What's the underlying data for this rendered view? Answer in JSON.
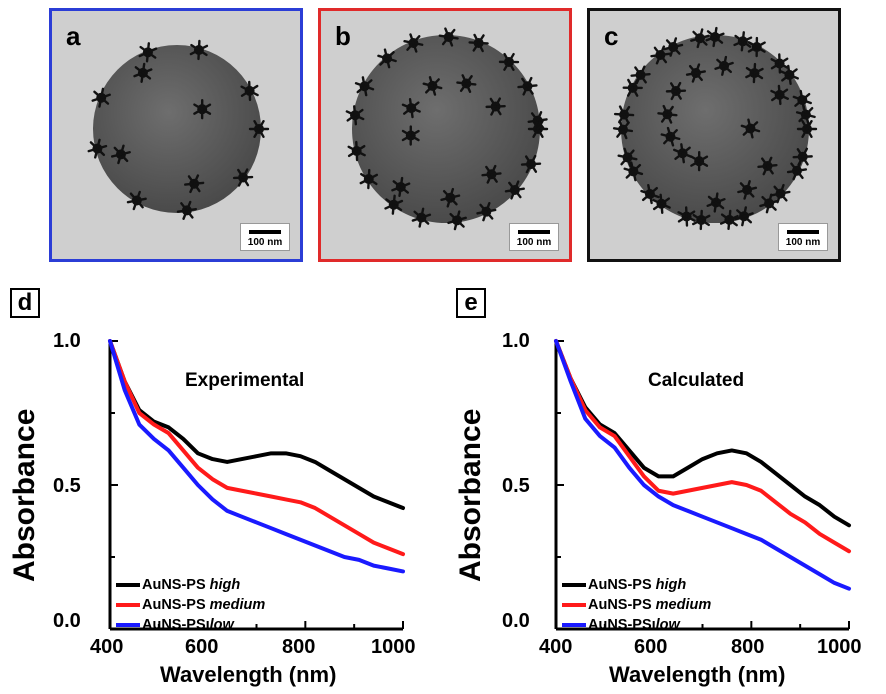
{
  "panels_tem": [
    {
      "label": "a",
      "border_color": "#2b3dd6",
      "scale_label": "100 nm",
      "particle_loading": "low"
    },
    {
      "label": "b",
      "border_color": "#e02a2a",
      "scale_label": "100 nm",
      "particle_loading": "medium"
    },
    {
      "label": "c",
      "border_color": "#111111",
      "scale_label": "100 nm",
      "particle_loading": "high"
    }
  ],
  "colors": {
    "high": "#000000",
    "medium": "#ff1a1a",
    "low": "#1a1aff"
  },
  "chart_data": [
    {
      "panel_label": "d",
      "type": "line",
      "title": "Experimental",
      "xlabel": "Wavelength (nm)",
      "ylabel": "Absorbance",
      "xlim": [
        400,
        1000
      ],
      "ylim": [
        0.0,
        1.0
      ],
      "xticks": [
        "400",
        "600",
        "800",
        "1000"
      ],
      "yticks": [
        "0.0",
        "0.5",
        "1.0"
      ],
      "legend": {
        "position": "bottom-left"
      },
      "series": [
        {
          "name_main": "AuNS-PS",
          "name_mod": "high",
          "color": "#000000",
          "x": [
            400,
            430,
            460,
            490,
            520,
            550,
            580,
            610,
            640,
            670,
            700,
            730,
            760,
            790,
            820,
            850,
            880,
            910,
            940,
            970,
            1000
          ],
          "y": [
            1.0,
            0.86,
            0.76,
            0.72,
            0.7,
            0.66,
            0.61,
            0.59,
            0.58,
            0.59,
            0.6,
            0.61,
            0.61,
            0.6,
            0.58,
            0.55,
            0.52,
            0.49,
            0.46,
            0.44,
            0.42
          ]
        },
        {
          "name_main": "AuNS-PS",
          "name_mod": "medium",
          "color": "#ff1a1a",
          "x": [
            400,
            430,
            460,
            490,
            520,
            550,
            580,
            610,
            640,
            670,
            700,
            730,
            760,
            790,
            820,
            850,
            880,
            910,
            940,
            970,
            1000
          ],
          "y": [
            1.0,
            0.86,
            0.75,
            0.71,
            0.68,
            0.62,
            0.56,
            0.52,
            0.49,
            0.48,
            0.47,
            0.46,
            0.45,
            0.44,
            0.42,
            0.39,
            0.36,
            0.33,
            0.3,
            0.28,
            0.26
          ]
        },
        {
          "name_main": "AuNS-PS",
          "name_mod": "low",
          "color": "#1a1aff",
          "x": [
            400,
            430,
            460,
            490,
            520,
            550,
            580,
            610,
            640,
            670,
            700,
            730,
            760,
            790,
            820,
            850,
            880,
            910,
            940,
            970,
            1000
          ],
          "y": [
            1.0,
            0.83,
            0.71,
            0.66,
            0.62,
            0.56,
            0.5,
            0.45,
            0.41,
            0.39,
            0.37,
            0.35,
            0.33,
            0.31,
            0.29,
            0.27,
            0.25,
            0.24,
            0.22,
            0.21,
            0.2
          ]
        }
      ]
    },
    {
      "panel_label": "e",
      "type": "line",
      "title": "Calculated",
      "xlabel": "Wavelength (nm)",
      "ylabel": "Absorbance",
      "xlim": [
        400,
        1000
      ],
      "ylim": [
        0.0,
        1.0
      ],
      "xticks": [
        "400",
        "600",
        "800",
        "1000"
      ],
      "yticks": [
        "0.0",
        "0.5",
        "1.0"
      ],
      "legend": {
        "position": "bottom-left"
      },
      "series": [
        {
          "name_main": "AuNS-PS",
          "name_mod": "high",
          "color": "#000000",
          "x": [
            400,
            430,
            460,
            490,
            520,
            550,
            580,
            610,
            640,
            670,
            700,
            730,
            760,
            790,
            820,
            850,
            880,
            910,
            940,
            970,
            1000
          ],
          "y": [
            1.0,
            0.87,
            0.77,
            0.71,
            0.68,
            0.62,
            0.56,
            0.53,
            0.53,
            0.56,
            0.59,
            0.61,
            0.62,
            0.61,
            0.58,
            0.54,
            0.5,
            0.46,
            0.43,
            0.39,
            0.36
          ]
        },
        {
          "name_main": "AuNS-PS",
          "name_mod": "medium",
          "color": "#ff1a1a",
          "x": [
            400,
            430,
            460,
            490,
            520,
            550,
            580,
            610,
            640,
            670,
            700,
            730,
            760,
            790,
            820,
            850,
            880,
            910,
            940,
            970,
            1000
          ],
          "y": [
            1.0,
            0.87,
            0.76,
            0.7,
            0.67,
            0.6,
            0.53,
            0.48,
            0.47,
            0.48,
            0.49,
            0.5,
            0.51,
            0.5,
            0.48,
            0.44,
            0.4,
            0.37,
            0.33,
            0.3,
            0.27
          ]
        },
        {
          "name_main": "AuNS-PS",
          "name_mod": "low",
          "color": "#1a1aff",
          "x": [
            400,
            430,
            460,
            490,
            520,
            550,
            580,
            610,
            640,
            670,
            700,
            730,
            760,
            790,
            820,
            850,
            880,
            910,
            940,
            970,
            1000
          ],
          "y": [
            1.0,
            0.86,
            0.73,
            0.67,
            0.63,
            0.56,
            0.5,
            0.46,
            0.43,
            0.41,
            0.39,
            0.37,
            0.35,
            0.33,
            0.31,
            0.28,
            0.25,
            0.22,
            0.19,
            0.16,
            0.14
          ]
        }
      ]
    }
  ]
}
